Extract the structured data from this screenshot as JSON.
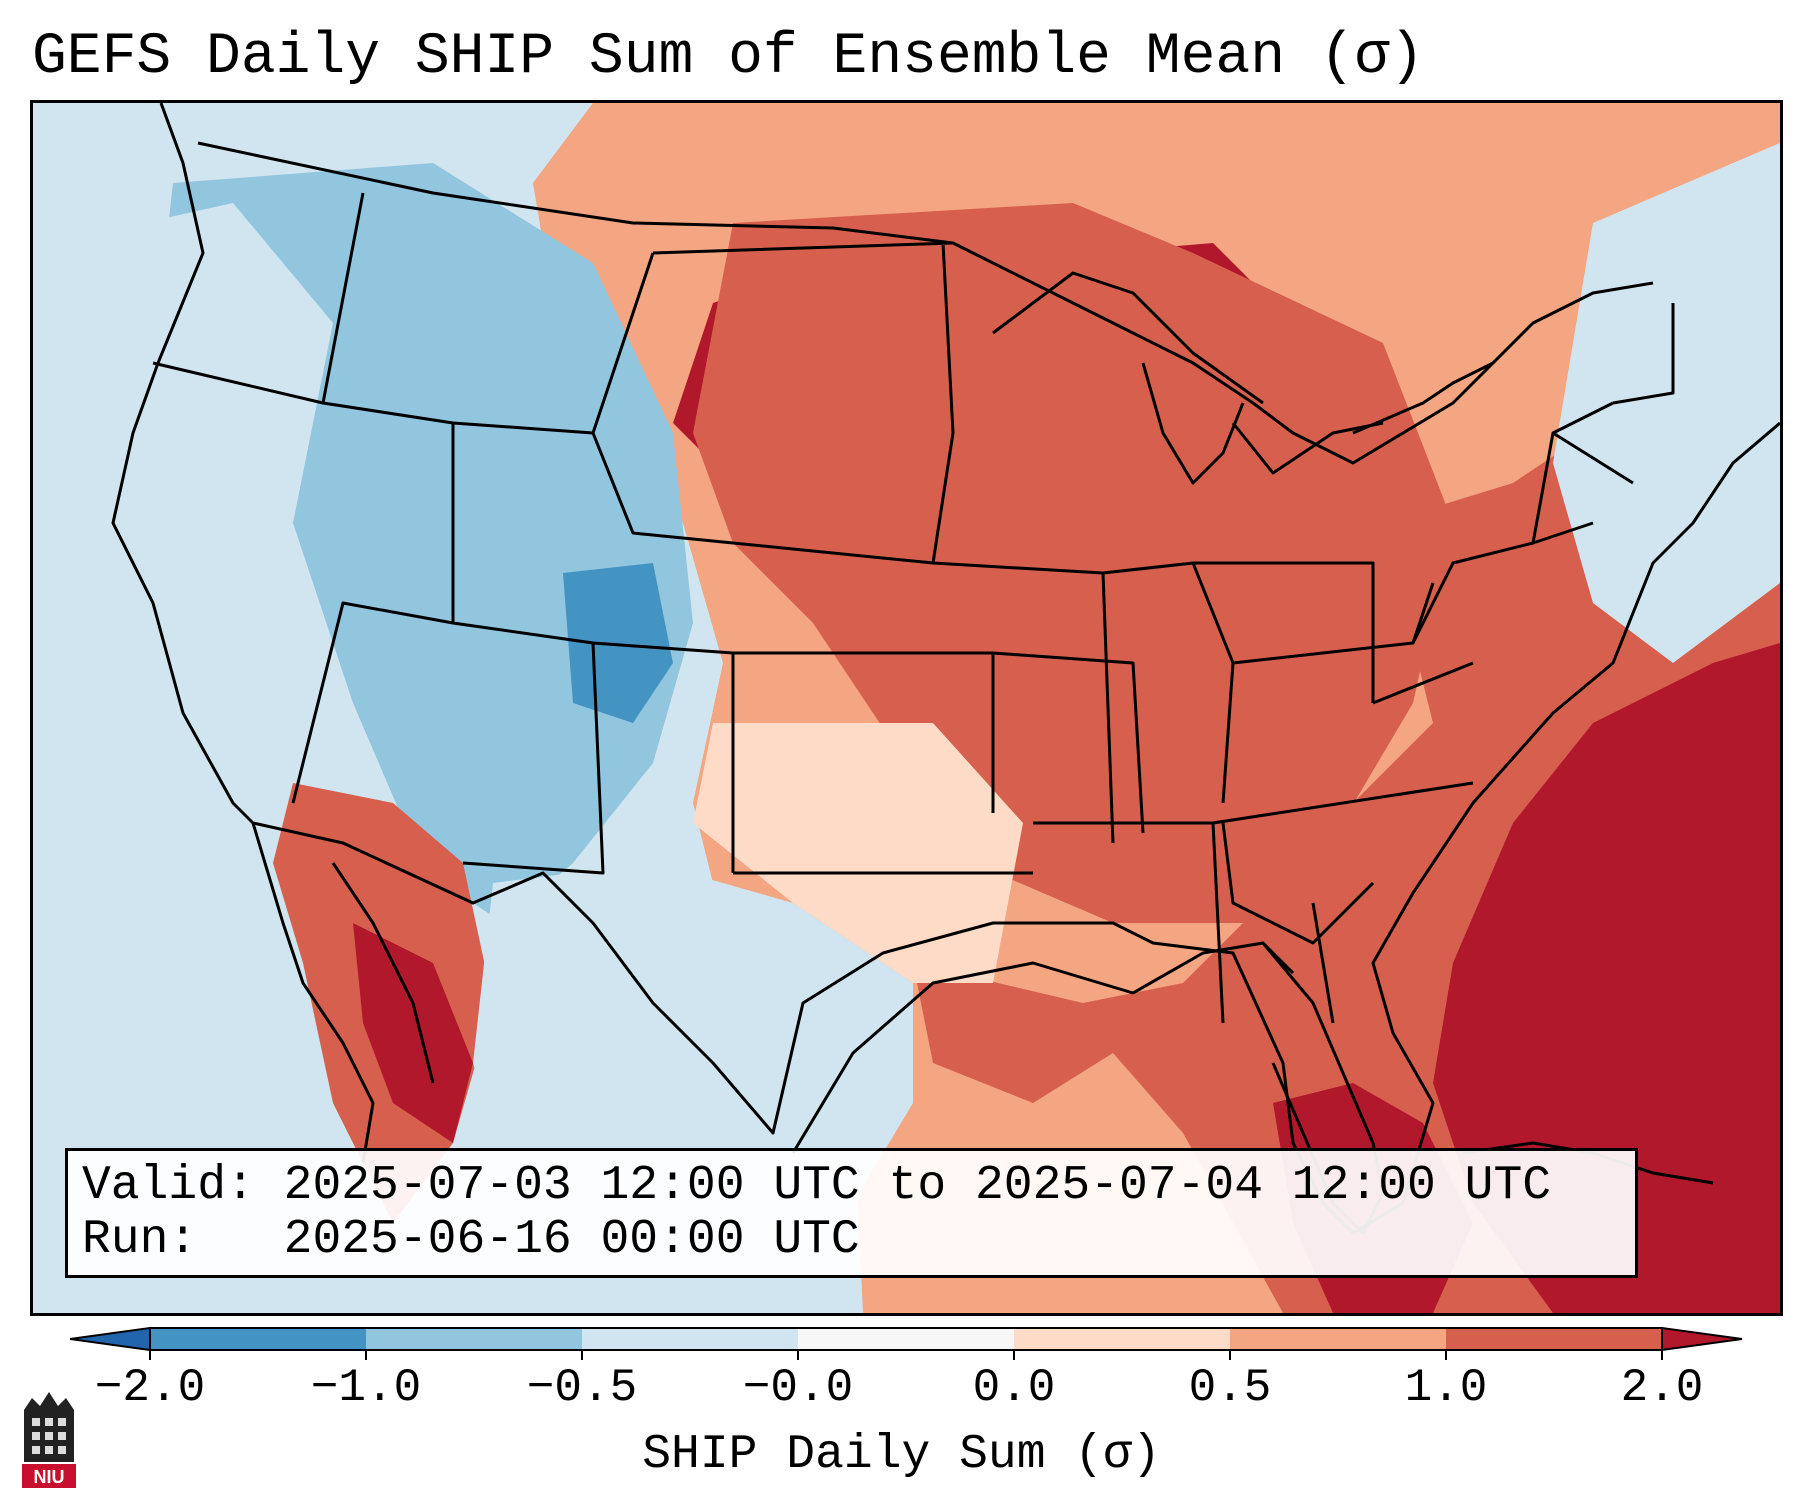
{
  "title": "GEFS Daily SHIP Sum of Ensemble Mean (σ)",
  "info": {
    "valid_label": "Valid:",
    "valid_value": "2025-07-03 12:00 UTC to 2025-07-04 12:00 UTC",
    "run_label": "Run:",
    "run_value": "2025-06-16 00:00 UTC"
  },
  "colorbar": {
    "label": "SHIP Daily Sum (σ)",
    "ticks": [
      "−2.0",
      "−1.0",
      "−0.5",
      "−0.0",
      "0.0",
      "0.5",
      "1.0",
      "2.0"
    ],
    "colors": [
      "#4393c3",
      "#92c5de",
      "#d1e5f0",
      "#f7f7f7",
      "#fddbc7",
      "#f4a582",
      "#d6604d",
      "#b2182b"
    ],
    "extend_low_color": "#2166ac",
    "extend_high_color": "#b2182b"
  },
  "logo": {
    "text": "NIU"
  },
  "map": {
    "projection": "Lambert Conformal (CONUS)",
    "ocean_color": "#d1e5f0",
    "boundary_color": "#000000"
  }
}
